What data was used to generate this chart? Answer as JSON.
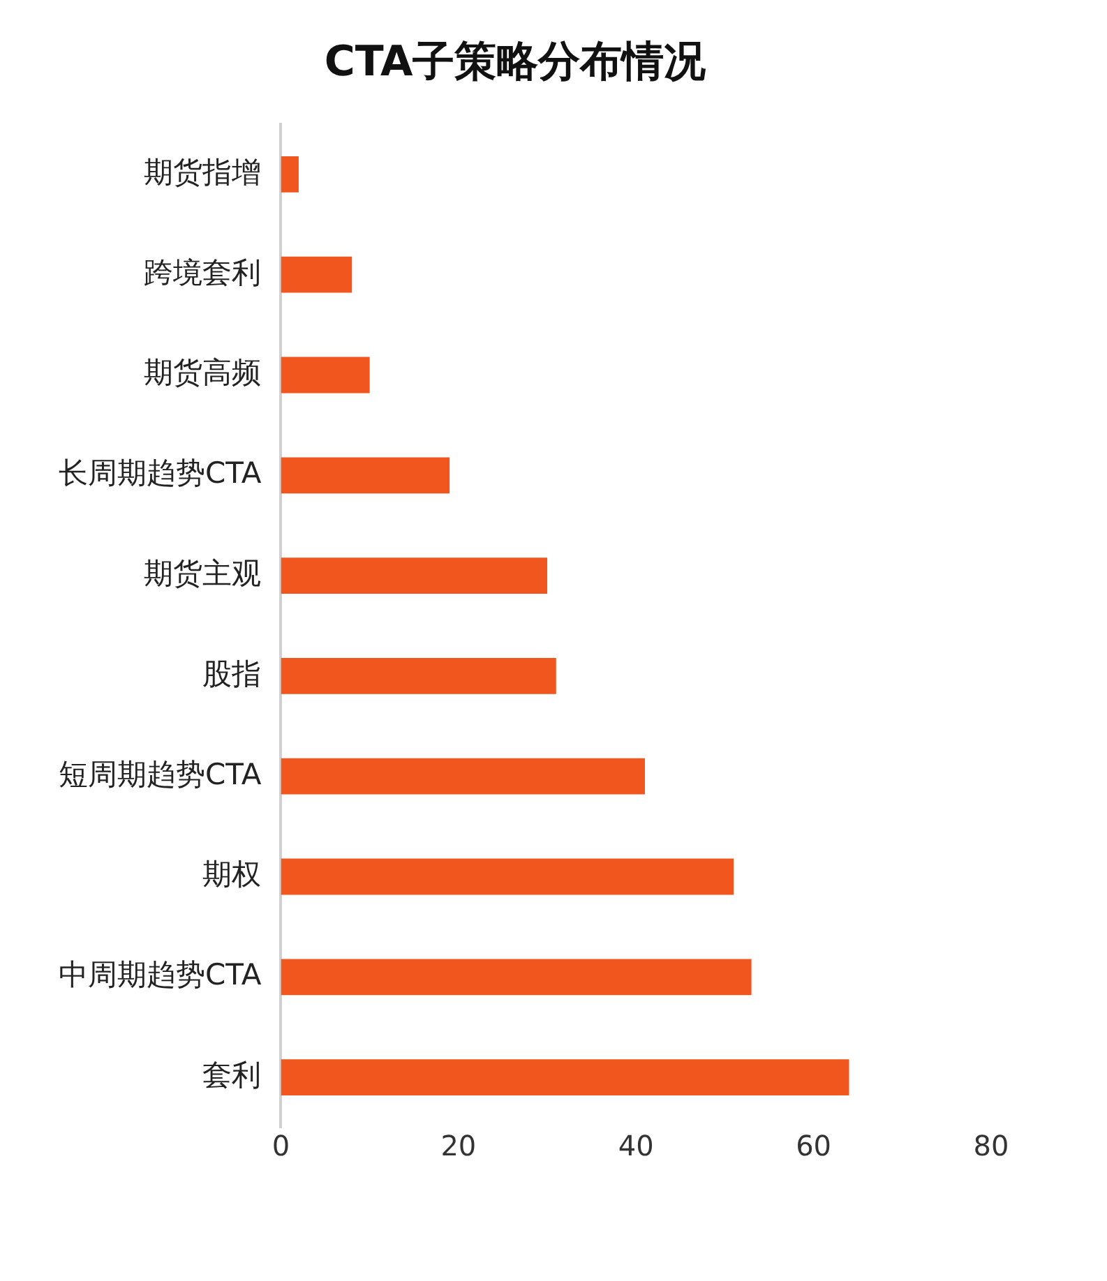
{
  "chart_data": {
    "type": "bar",
    "orientation": "horizontal",
    "title": "CTA子策略分布情况",
    "categories": [
      "期货指增",
      "跨境套利",
      "期货高频",
      "长周期趋势CTA",
      "期货主观",
      "股指",
      "短周期趋势CTA",
      "期权",
      "中周期趋势CTA",
      "套利"
    ],
    "values": [
      2,
      8,
      10,
      19,
      30,
      31,
      41,
      51,
      53,
      64
    ],
    "color": "#f0561d",
    "xlim": [
      0,
      80
    ],
    "xticks": [
      0,
      20,
      40,
      60,
      80
    ],
    "grid": false
  }
}
